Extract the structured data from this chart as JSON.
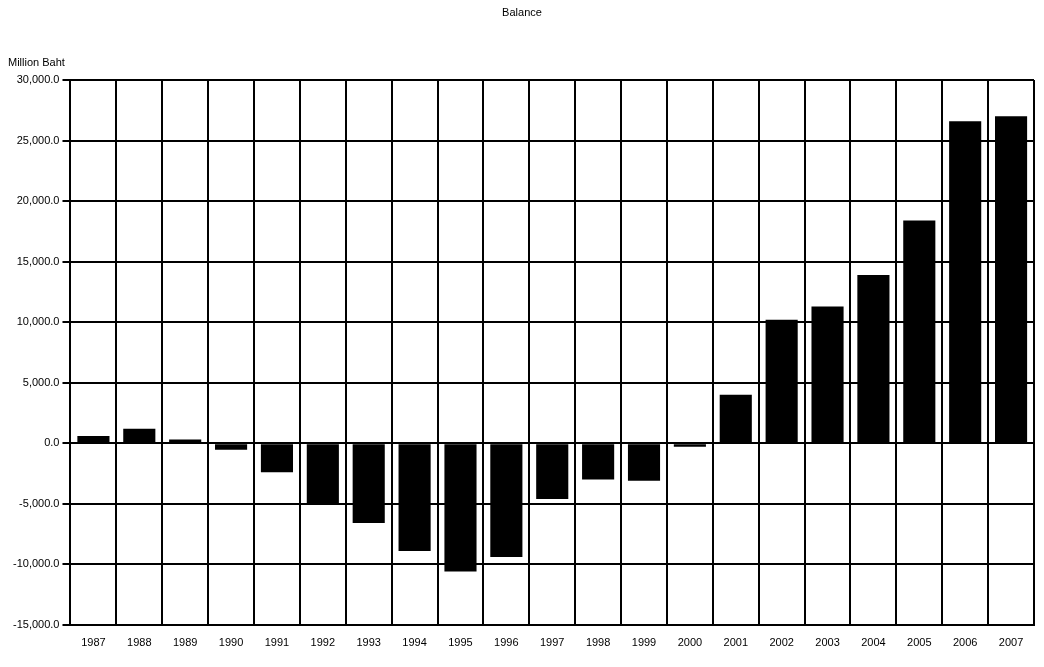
{
  "chart_data": {
    "type": "bar",
    "title": "Balance",
    "ylabel": "Million Baht",
    "categories": [
      "1987",
      "1988",
      "1989",
      "1990",
      "1991",
      "1992",
      "1993",
      "1994",
      "1995",
      "1996",
      "1997",
      "1998",
      "1999",
      "2000",
      "2001",
      "2002",
      "2003",
      "2004",
      "2005",
      "2006",
      "2007"
    ],
    "values": [
      600,
      1200,
      300,
      -550,
      -2400,
      -5100,
      -6600,
      -8900,
      -10600,
      -9400,
      -4600,
      -3000,
      -3100,
      -300,
      4000,
      10200,
      11300,
      13900,
      18400,
      26600,
      27000
    ],
    "color": "#000000",
    "ylim": [
      -15000,
      30000
    ],
    "yticks": [
      {
        "value": -15000,
        "label": "-15,000.0"
      },
      {
        "value": -10000,
        "label": "-10,000.0"
      },
      {
        "value": -5000,
        "label": "-5,000.0"
      },
      {
        "value": 0,
        "label": "0.0"
      },
      {
        "value": 5000,
        "label": "5,000.0"
      },
      {
        "value": 10000,
        "label": "10,000.0"
      },
      {
        "value": 15000,
        "label": "15,000.0"
      },
      {
        "value": 20000,
        "label": "20,000.0"
      },
      {
        "value": 25000,
        "label": "25,000.0"
      },
      {
        "value": 30000,
        "label": "30,000.0"
      }
    ],
    "grid": true
  }
}
